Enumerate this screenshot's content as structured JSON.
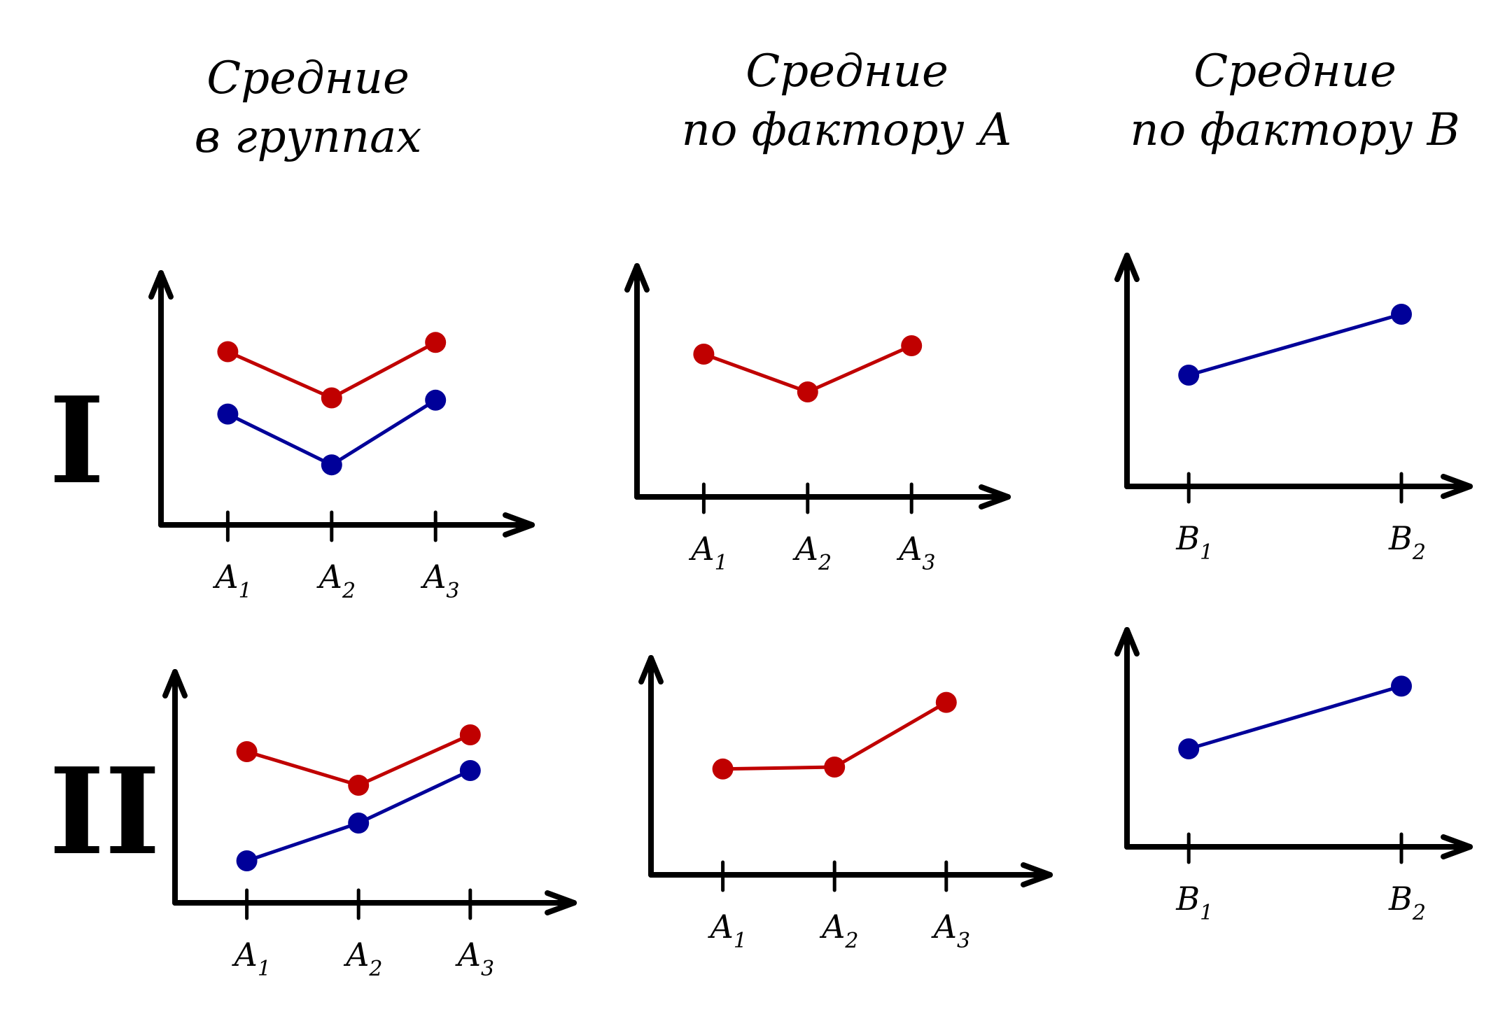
{
  "column_titles": [
    {
      "line1": "Средние",
      "line2": "в группах"
    },
    {
      "line1": "Средние",
      "line2": "по фактору А"
    },
    {
      "line1": "Средние",
      "line2": "по фактору В"
    }
  ],
  "row_labels": [
    "I",
    "II"
  ],
  "colors": {
    "red": "#c00000",
    "blue": "#000099",
    "axis": "#000000"
  },
  "chart_data": [
    {
      "type": "line",
      "row": "I",
      "column": 1,
      "categories": [
        {
          "base": "A",
          "sub": "1"
        },
        {
          "base": "A",
          "sub": "2"
        },
        {
          "base": "A",
          "sub": "3"
        }
      ],
      "series": [
        {
          "color": "red",
          "values": [
            7.5,
            5.5,
            7.9
          ]
        },
        {
          "color": "blue",
          "values": [
            4.8,
            2.6,
            5.4
          ]
        }
      ],
      "ylim": [
        0,
        10
      ],
      "xlabel": "",
      "ylabel": "",
      "title": ""
    },
    {
      "type": "line",
      "row": "I",
      "column": 2,
      "categories": [
        {
          "base": "A",
          "sub": "1"
        },
        {
          "base": "A",
          "sub": "2"
        },
        {
          "base": "A",
          "sub": "3"
        }
      ],
      "series": [
        {
          "color": "red",
          "values": [
            6.8,
            5.0,
            7.2
          ]
        }
      ],
      "ylim": [
        0,
        10
      ],
      "xlabel": "",
      "ylabel": "",
      "title": ""
    },
    {
      "type": "line",
      "row": "I",
      "column": 3,
      "categories": [
        {
          "base": "B",
          "sub": "1"
        },
        {
          "base": "B",
          "sub": "2"
        }
      ],
      "series": [
        {
          "color": "blue",
          "values": [
            5.3,
            8.2
          ]
        }
      ],
      "ylim": [
        0,
        10
      ],
      "xlabel": "",
      "ylabel": "",
      "title": ""
    },
    {
      "type": "line",
      "row": "II",
      "column": 1,
      "categories": [
        {
          "base": "A",
          "sub": "1"
        },
        {
          "base": "A",
          "sub": "2"
        },
        {
          "base": "A",
          "sub": "3"
        }
      ],
      "series": [
        {
          "color": "red",
          "values": [
            7.2,
            5.6,
            8.0
          ]
        },
        {
          "color": "blue",
          "values": [
            2.0,
            3.8,
            6.3
          ]
        }
      ],
      "ylim": [
        0,
        10
      ],
      "xlabel": "",
      "ylabel": "",
      "title": ""
    },
    {
      "type": "line",
      "row": "II",
      "column": 2,
      "categories": [
        {
          "base": "A",
          "sub": "1"
        },
        {
          "base": "A",
          "sub": "2"
        },
        {
          "base": "A",
          "sub": "3"
        }
      ],
      "series": [
        {
          "color": "red",
          "values": [
            5.4,
            5.5,
            8.8
          ]
        }
      ],
      "ylim": [
        0,
        10
      ],
      "xlabel": "",
      "ylabel": "",
      "title": ""
    },
    {
      "type": "line",
      "row": "II",
      "column": 3,
      "categories": [
        {
          "base": "B",
          "sub": "1"
        },
        {
          "base": "B",
          "sub": "2"
        }
      ],
      "series": [
        {
          "color": "blue",
          "values": [
            5.0,
            8.2
          ]
        }
      ],
      "ylim": [
        0,
        10
      ],
      "xlabel": "",
      "ylabel": "",
      "title": ""
    }
  ]
}
